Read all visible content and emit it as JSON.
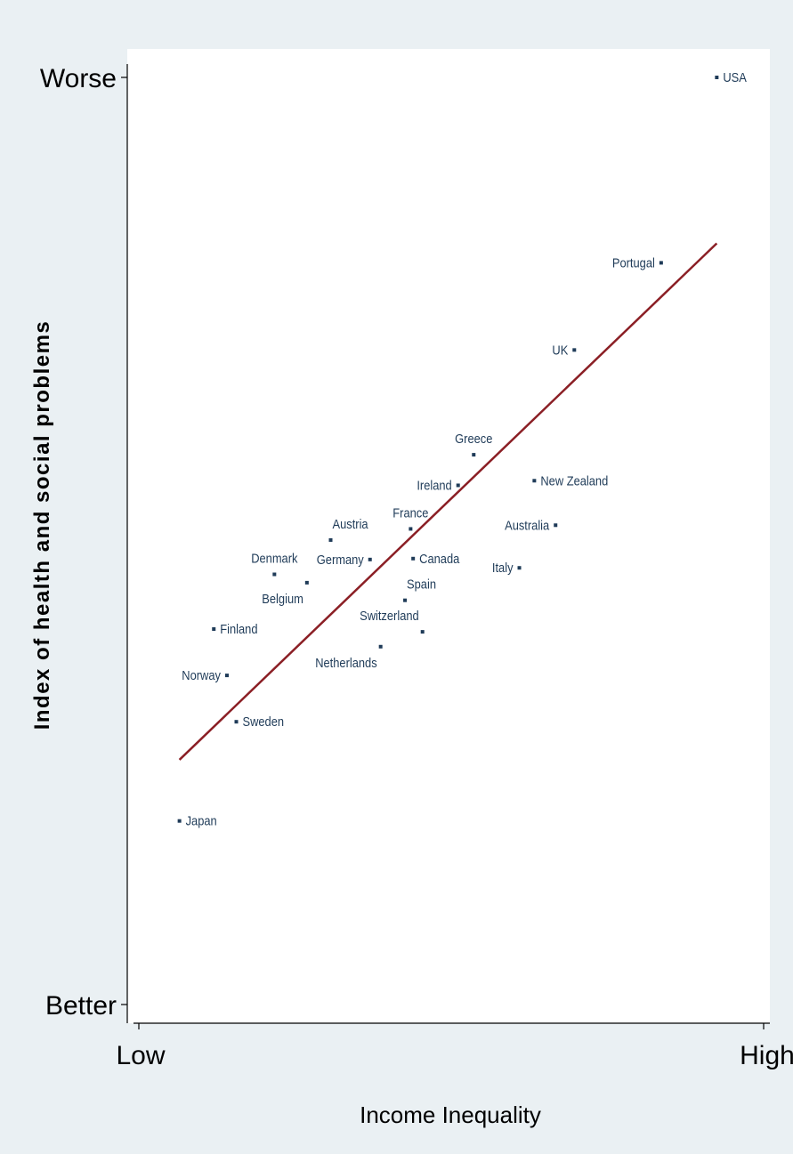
{
  "chart_data": {
    "type": "scatter",
    "title": "",
    "xlabel": "Income Inequality",
    "ylabel": "Index of health and social problems",
    "x_ticks": [
      "Low",
      "High"
    ],
    "y_ticks": [
      "Worse",
      "Better"
    ],
    "xlim": [
      0,
      100
    ],
    "ylim": [
      0,
      100
    ],
    "grid": false,
    "legend": "none",
    "colors": {
      "background": "#eaf0f3",
      "plot_background": "#ffffff",
      "fit_line": "#8b1f25",
      "points": "#1f3b58"
    },
    "points": [
      {
        "label": "USA",
        "x": 92.5,
        "y": 100,
        "label_pos": "right"
      },
      {
        "label": "Portugal",
        "x": 83.6,
        "y": 80,
        "label_pos": "left"
      },
      {
        "label": "UK",
        "x": 69.7,
        "y": 70.6,
        "label_pos": "left"
      },
      {
        "label": "Greece",
        "x": 53.6,
        "y": 59.3,
        "label_pos": "above"
      },
      {
        "label": "New Zealand",
        "x": 63.3,
        "y": 56.5,
        "label_pos": "right"
      },
      {
        "label": "Ireland",
        "x": 51.1,
        "y": 56.0,
        "label_pos": "left"
      },
      {
        "label": "France",
        "x": 43.5,
        "y": 51.3,
        "label_pos": "above"
      },
      {
        "label": "Australia",
        "x": 66.7,
        "y": 51.7,
        "label_pos": "left"
      },
      {
        "label": "Austria",
        "x": 30.7,
        "y": 50.1,
        "label_pos": "aboveright"
      },
      {
        "label": "Germany",
        "x": 37.0,
        "y": 48.0,
        "label_pos": "left"
      },
      {
        "label": "Canada",
        "x": 43.9,
        "y": 48.1,
        "label_pos": "right"
      },
      {
        "label": "Italy",
        "x": 60.9,
        "y": 47.1,
        "label_pos": "left"
      },
      {
        "label": "Denmark",
        "x": 21.7,
        "y": 46.4,
        "label_pos": "above"
      },
      {
        "label": "Belgium",
        "x": 26.9,
        "y": 45.5,
        "label_pos": "belowleft"
      },
      {
        "label": "Spain",
        "x": 42.6,
        "y": 43.6,
        "label_pos": "aboveright"
      },
      {
        "label": "Switzerland",
        "x": 45.4,
        "y": 40.2,
        "label_pos": "aboveleft"
      },
      {
        "label": "Netherlands",
        "x": 38.7,
        "y": 38.6,
        "label_pos": "belowleft"
      },
      {
        "label": "Finland",
        "x": 12.0,
        "y": 40.5,
        "label_pos": "right"
      },
      {
        "label": "Norway",
        "x": 14.1,
        "y": 35.5,
        "label_pos": "left"
      },
      {
        "label": "Sweden",
        "x": 15.6,
        "y": 30.5,
        "label_pos": "right"
      },
      {
        "label": "Japan",
        "x": 6.5,
        "y": 19.8,
        "label_pos": "right"
      }
    ],
    "fit_line": {
      "x": [
        6.5,
        92.5
      ],
      "y": [
        26.4,
        82.1
      ]
    }
  }
}
